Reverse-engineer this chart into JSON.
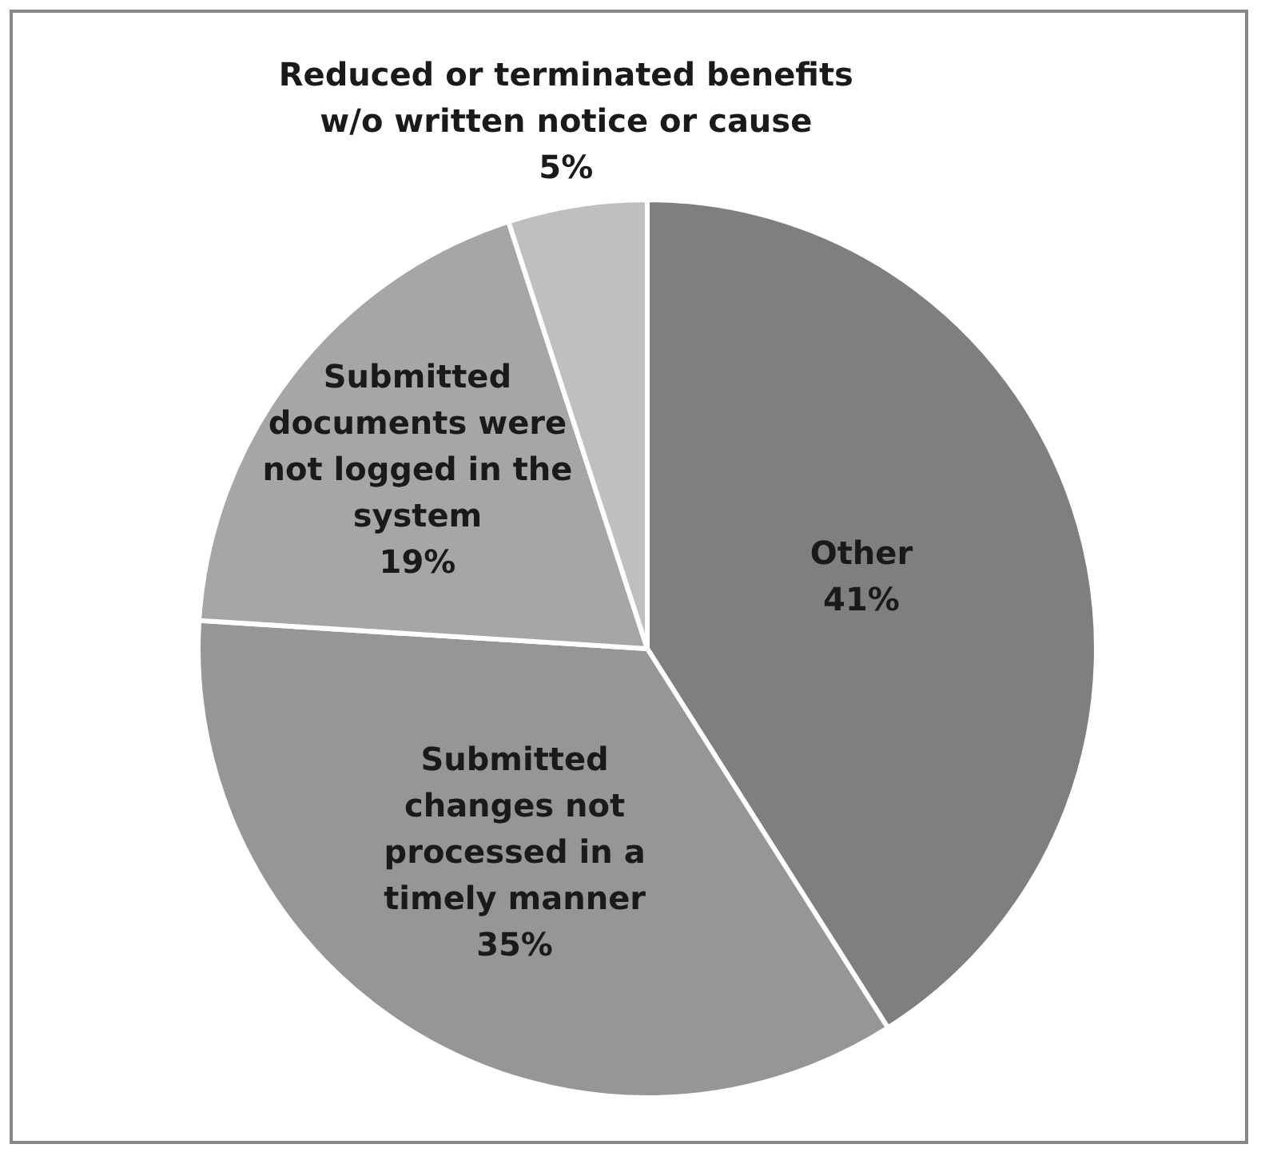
{
  "chart_data": {
    "type": "pie",
    "categories": [
      "Other",
      "Submitted changes not processed in a timely manner",
      "Submitted documents were not logged in the system",
      "Reduced or terminated benefits w/o written notice or cause"
    ],
    "values": [
      41,
      35,
      19,
      5
    ],
    "colors": [
      "#7f7f7f",
      "#969696",
      "#a6a6a6",
      "#bfbfbf"
    ],
    "value_labels": [
      "41%",
      "35%",
      "19%",
      "5%"
    ]
  }
}
